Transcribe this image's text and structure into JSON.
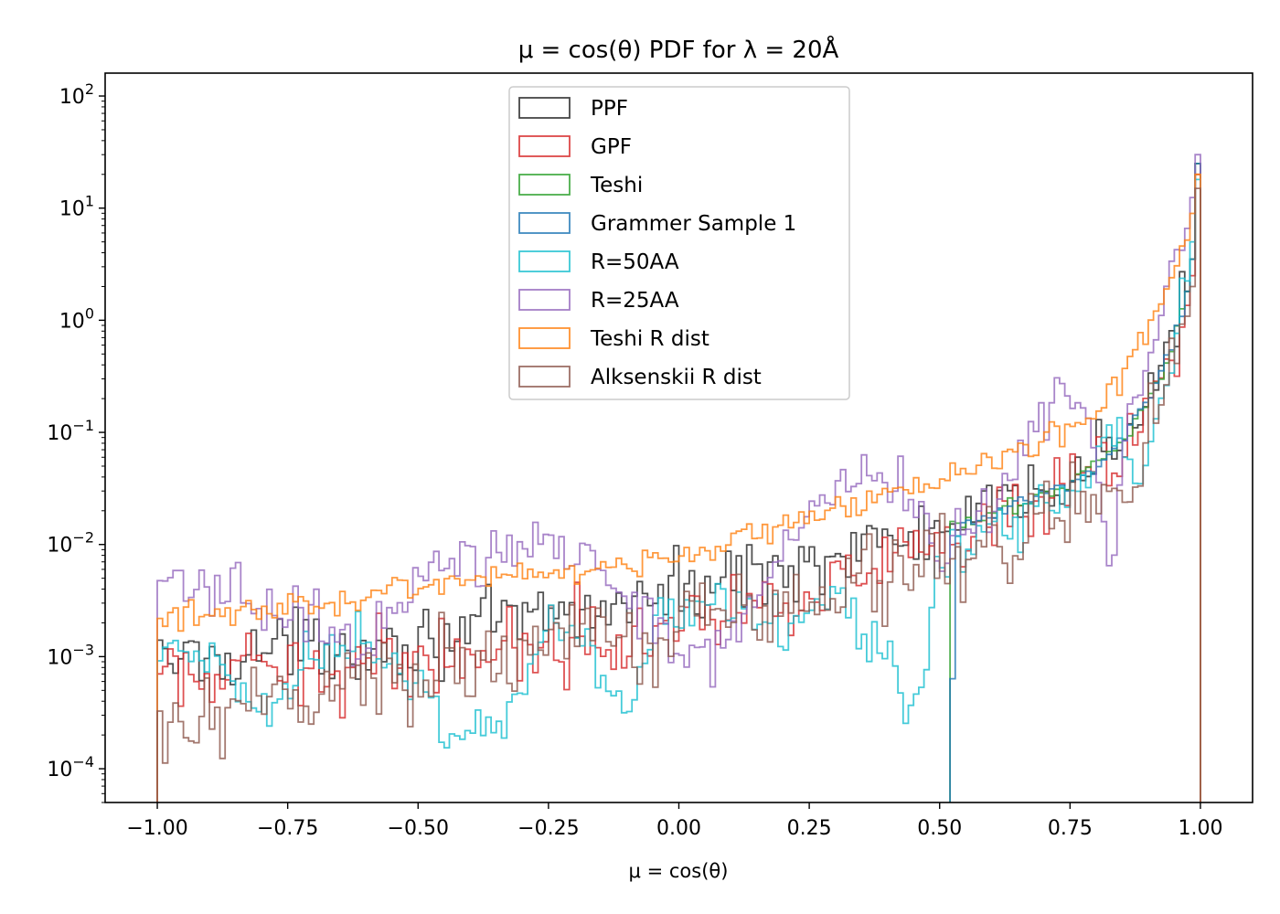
{
  "chart_data": {
    "type": "histogram-step",
    "title": "μ = cos(θ) PDF for λ = 20Å",
    "xlabel": "μ = cos(θ)",
    "ylabel": "",
    "xlim": [
      -1.1,
      1.1
    ],
    "ylim": [
      5e-05,
      160
    ],
    "yscale": "log",
    "grid": false,
    "legend_position": "upper center",
    "x_ticks": [
      -1.0,
      -0.75,
      -0.5,
      -0.25,
      0.0,
      0.25,
      0.5,
      0.75,
      1.0
    ],
    "x_tick_labels": [
      "−1.00",
      "−0.75",
      "−0.50",
      "−0.25",
      "0.00",
      "0.25",
      "0.50",
      "0.75",
      "1.00"
    ],
    "y_ticks": [
      0.0001,
      0.001,
      0.01,
      0.1,
      1,
      10,
      100
    ],
    "y_tick_labels": [
      {
        "base": "10",
        "exp": "−4"
      },
      {
        "base": "10",
        "exp": "−3"
      },
      {
        "base": "10",
        "exp": "−2"
      },
      {
        "base": "10",
        "exp": "−1"
      },
      {
        "base": "10",
        "exp": "0"
      },
      {
        "base": "10",
        "exp": "1"
      },
      {
        "base": "10",
        "exp": "2"
      }
    ],
    "series": [
      {
        "name": "PPF",
        "color": "#262626",
        "noise": 0.3,
        "anchors": [
          [
            -1.0,
            0.0009
          ],
          [
            -0.75,
            0.0012
          ],
          [
            -0.5,
            0.0014
          ],
          [
            -0.25,
            0.0022
          ],
          [
            0.0,
            0.0038
          ],
          [
            0.25,
            0.0072
          ],
          [
            0.5,
            0.013
          ],
          [
            0.6,
            0.019
          ],
          [
            0.7,
            0.03
          ],
          [
            0.8,
            0.055
          ],
          [
            0.85,
            0.085
          ],
          [
            0.9,
            0.2
          ],
          [
            0.94,
            0.5
          ],
          [
            0.97,
            1.3
          ],
          [
            0.985,
            3.5
          ],
          [
            0.995,
            25
          ],
          [
            1.0,
            80
          ]
        ]
      },
      {
        "name": "GPF",
        "color": "#d62728",
        "noise": 0.35,
        "anchors": [
          [
            -1.0,
            0.0006
          ],
          [
            -0.75,
            0.0007
          ],
          [
            -0.5,
            0.001
          ],
          [
            -0.25,
            0.0014
          ],
          [
            0.0,
            0.0022
          ],
          [
            0.25,
            0.004
          ],
          [
            0.5,
            0.0085
          ],
          [
            0.6,
            0.013
          ],
          [
            0.7,
            0.02
          ],
          [
            0.8,
            0.04
          ],
          [
            0.85,
            0.065
          ],
          [
            0.9,
            0.15
          ],
          [
            0.94,
            0.4
          ],
          [
            0.97,
            1.0
          ],
          [
            0.985,
            2.5
          ],
          [
            0.995,
            20
          ],
          [
            1.0,
            70
          ]
        ]
      },
      {
        "name": "Teshi",
        "color": "#2ca02c",
        "noise": 0.08,
        "anchors": [
          [
            0.52,
            0.0008
          ],
          [
            0.525,
            0.014
          ],
          [
            0.6,
            0.018
          ],
          [
            0.7,
            0.028
          ],
          [
            0.8,
            0.05
          ],
          [
            0.85,
            0.085
          ],
          [
            0.9,
            0.2
          ],
          [
            0.94,
            0.5
          ],
          [
            0.97,
            1.3
          ],
          [
            0.985,
            3.5
          ],
          [
            0.995,
            25
          ],
          [
            1.0,
            75
          ]
        ]
      },
      {
        "name": "Grammer Sample 1",
        "color": "#1f77b4",
        "noise": 0.08,
        "anchors": [
          [
            0.525,
            0.0006
          ],
          [
            0.53,
            0.013
          ],
          [
            0.6,
            0.018
          ],
          [
            0.7,
            0.028
          ],
          [
            0.8,
            0.05
          ],
          [
            0.85,
            0.085
          ],
          [
            0.9,
            0.2
          ],
          [
            0.94,
            0.5
          ],
          [
            0.97,
            1.3
          ],
          [
            0.985,
            3.5
          ],
          [
            0.995,
            25
          ],
          [
            1.0,
            75
          ]
        ]
      },
      {
        "name": "R=50AA",
        "color": "#17becf",
        "noise": 0.25,
        "anchors": [
          [
            -1.0,
            0.001
          ],
          [
            -0.85,
            0.0008
          ],
          [
            -0.8,
            0.0003
          ],
          [
            -0.7,
            0.0012
          ],
          [
            -0.6,
            0.0015
          ],
          [
            -0.55,
            0.0008
          ],
          [
            -0.5,
            0.0005
          ],
          [
            -0.45,
            0.0002
          ],
          [
            -0.35,
            0.0002
          ],
          [
            -0.25,
            0.002
          ],
          [
            -0.2,
            0.002
          ],
          [
            -0.15,
            0.0008
          ],
          [
            -0.1,
            0.0003
          ],
          [
            -0.05,
            0.002
          ],
          [
            0.1,
            0.0035
          ],
          [
            0.2,
            0.002
          ],
          [
            0.3,
            0.004
          ],
          [
            0.4,
            0.001
          ],
          [
            0.45,
            0.0002
          ],
          [
            0.5,
            0.006
          ],
          [
            0.6,
            0.016
          ],
          [
            0.65,
            0.015
          ],
          [
            0.7,
            0.03
          ],
          [
            0.75,
            0.02
          ],
          [
            0.8,
            0.06
          ],
          [
            0.85,
            0.1
          ],
          [
            0.88,
            0.02
          ],
          [
            0.91,
            0.1
          ],
          [
            0.94,
            0.4
          ],
          [
            0.97,
            1.5
          ],
          [
            0.985,
            5
          ],
          [
            0.995,
            18
          ],
          [
            1.0,
            60
          ]
        ]
      },
      {
        "name": "R=25AA",
        "color": "#9467bd",
        "noise": 0.25,
        "anchors": [
          [
            -1.0,
            0.0037
          ],
          [
            -0.9,
            0.0045
          ],
          [
            -0.8,
            0.003
          ],
          [
            -0.7,
            0.002
          ],
          [
            -0.6,
            0.0012
          ],
          [
            -0.5,
            0.006
          ],
          [
            -0.35,
            0.008
          ],
          [
            -0.25,
            0.011
          ],
          [
            -0.15,
            0.006
          ],
          [
            -0.05,
            0.002
          ],
          [
            0.05,
            0.0008
          ],
          [
            0.15,
            0.003
          ],
          [
            0.2,
            0.01
          ],
          [
            0.25,
            0.022
          ],
          [
            0.35,
            0.035
          ],
          [
            0.45,
            0.03
          ],
          [
            0.5,
            0.01
          ],
          [
            0.55,
            0.015
          ],
          [
            0.6,
            0.02
          ],
          [
            0.65,
            0.05
          ],
          [
            0.7,
            0.14
          ],
          [
            0.75,
            0.2
          ],
          [
            0.78,
            0.16
          ],
          [
            0.8,
            0.05
          ],
          [
            0.83,
            0.005
          ],
          [
            0.85,
            0.05
          ],
          [
            0.9,
            0.5
          ],
          [
            0.95,
            2.5
          ],
          [
            0.98,
            8
          ],
          [
            0.995,
            30
          ],
          [
            1.0,
            80
          ]
        ]
      },
      {
        "name": "Teshi R dist",
        "color": "#ff7f0e",
        "noise": 0.12,
        "anchors": [
          [
            -1.0,
            0.0022
          ],
          [
            -0.75,
            0.0025
          ],
          [
            -0.5,
            0.0045
          ],
          [
            -0.25,
            0.0058
          ],
          [
            0.0,
            0.0078
          ],
          [
            0.25,
            0.017
          ],
          [
            0.4,
            0.028
          ],
          [
            0.5,
            0.038
          ],
          [
            0.6,
            0.052
          ],
          [
            0.7,
            0.085
          ],
          [
            0.8,
            0.15
          ],
          [
            0.85,
            0.3
          ],
          [
            0.9,
            0.8
          ],
          [
            0.95,
            2.5
          ],
          [
            0.98,
            6
          ],
          [
            0.995,
            20
          ],
          [
            1.0,
            28
          ]
        ]
      },
      {
        "name": "Alksenskii R dist",
        "color": "#8c564b",
        "noise": 0.4,
        "anchors": [
          [
            -1.0,
            0.0002
          ],
          [
            -0.9,
            0.0002
          ],
          [
            -0.75,
            0.0004
          ],
          [
            -0.5,
            0.0007
          ],
          [
            -0.25,
            0.0012
          ],
          [
            0.0,
            0.0022
          ],
          [
            0.25,
            0.0035
          ],
          [
            0.5,
            0.0075
          ],
          [
            0.6,
            0.01
          ],
          [
            0.7,
            0.015
          ],
          [
            0.8,
            0.025
          ],
          [
            0.85,
            0.04
          ],
          [
            0.9,
            0.09
          ],
          [
            0.94,
            0.3
          ],
          [
            0.97,
            0.8
          ],
          [
            0.985,
            2.0
          ],
          [
            0.995,
            15
          ],
          [
            1.0,
            80
          ]
        ]
      }
    ]
  }
}
